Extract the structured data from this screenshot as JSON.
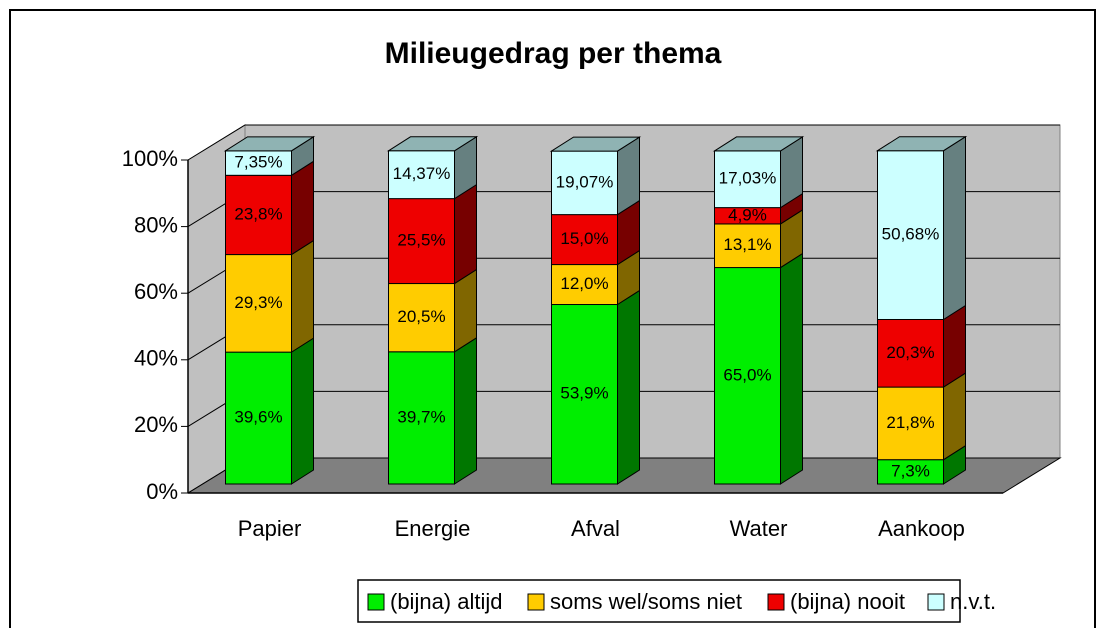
{
  "chart_data": {
    "type": "bar3d_stacked",
    "title": "Milieugedrag per thema",
    "categories": [
      "Papier",
      "Energie",
      "Afval",
      "Water",
      "Aankoop"
    ],
    "series": [
      {
        "name": "(bijna) altijd",
        "color": "#00ee00",
        "values": [
          39.6,
          39.7,
          53.9,
          65.0,
          7.3
        ],
        "value_labels": [
          "39,6%",
          "39,7%",
          "53,9%",
          "65,0%",
          "7,3%"
        ]
      },
      {
        "name": "soms wel/soms niet",
        "color": "#ffcc00",
        "values": [
          29.3,
          20.5,
          12.0,
          13.1,
          21.8
        ],
        "value_labels": [
          "29,3%",
          "20,5%",
          "12,0%",
          "13,1%",
          "21,8%"
        ]
      },
      {
        "name": "(bijna) nooit",
        "color": "#ee0000",
        "values": [
          23.8,
          25.5,
          15.0,
          4.9,
          20.3
        ],
        "value_labels": [
          "23,8%",
          "25,5%",
          "15,0%",
          "4,9%",
          "20,3%"
        ]
      },
      {
        "name": "n.v.t.",
        "color": "#ccffff",
        "values": [
          7.35,
          14.37,
          19.07,
          17.03,
          50.68
        ],
        "value_labels": [
          "7,35%",
          "14,37%",
          "19,07%",
          "17,03%",
          "50,68%"
        ]
      }
    ],
    "ylim": [
      0,
      100
    ],
    "yticks": [
      {
        "value": 0,
        "label": "0%"
      },
      {
        "value": 20,
        "label": "20%"
      },
      {
        "value": 40,
        "label": "40%"
      },
      {
        "value": 60,
        "label": "60%"
      },
      {
        "value": 80,
        "label": "80%"
      },
      {
        "value": 100,
        "label": "100%"
      }
    ],
    "grid": true,
    "legend": "bottom"
  }
}
